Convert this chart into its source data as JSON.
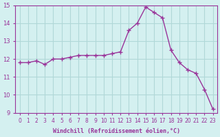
{
  "x": [
    0,
    1,
    2,
    3,
    4,
    5,
    6,
    7,
    8,
    9,
    10,
    11,
    12,
    13,
    14,
    15,
    16,
    17,
    18,
    19,
    20,
    21,
    22,
    23
  ],
  "y": [
    11.8,
    11.8,
    11.9,
    11.7,
    12.0,
    12.0,
    12.1,
    12.2,
    12.2,
    12.2,
    12.2,
    12.3,
    12.4,
    13.6,
    14.0,
    14.9,
    14.6,
    14.3,
    12.5,
    11.8,
    11.4,
    11.2,
    10.3,
    9.2
  ],
  "xlabel": "Windchill (Refroidissement éolien,°C)",
  "xlim": [
    -0.5,
    23.5
  ],
  "ylim": [
    9,
    15
  ],
  "yticks": [
    9,
    10,
    11,
    12,
    13,
    14,
    15
  ],
  "xticks": [
    0,
    1,
    2,
    3,
    4,
    5,
    6,
    7,
    8,
    9,
    10,
    11,
    12,
    13,
    14,
    15,
    16,
    17,
    18,
    19,
    20,
    21,
    22,
    23
  ],
  "line_color": "#993399",
  "marker": "+",
  "bg_color": "#d4f0f0",
  "grid_color": "#b0d8d8",
  "axis_label_color": "#993399",
  "tick_color": "#993399"
}
